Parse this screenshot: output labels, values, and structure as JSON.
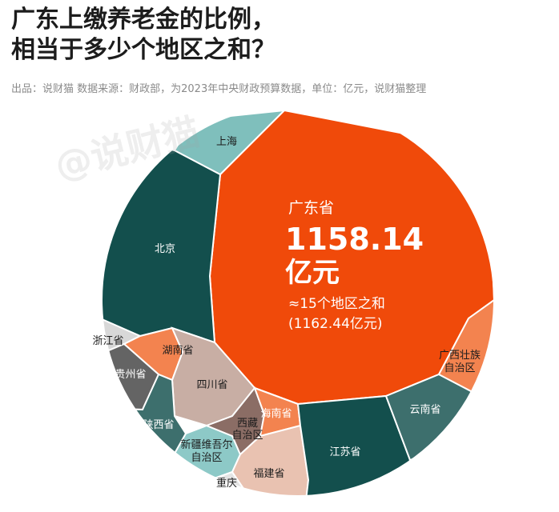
{
  "title_line1": "广东上缴养老金的比例，",
  "title_line2": "相当于多少个地区之和？",
  "source": "出品：说财猫   数据来源：财政部，为2023年中央财政预算数据，单位：亿元，说财猫整理",
  "watermark": "@说财猫",
  "chart_data": {
    "type": "voronoi-treemap",
    "unit": "亿元",
    "highlight": {
      "name": "广东省",
      "value": 1158.14,
      "value_label": "1158.14",
      "unit_label": "亿元",
      "note": "≈15个地区之和",
      "note_value": "(1162.44亿元)",
      "compare_sum": 1162.44
    },
    "regions": [
      {
        "name": "广东省",
        "color": "#f04a0a"
      },
      {
        "name": "北京",
        "color": "#134f4d"
      },
      {
        "name": "上海",
        "color": "#7fbfbc"
      },
      {
        "name": "浙江省",
        "color": "#d8d8d8"
      },
      {
        "name": "湖南省",
        "color": "#f3834f"
      },
      {
        "name": "贵州省",
        "color": "#646464"
      },
      {
        "name": "四川省",
        "color": "#c8aea4"
      },
      {
        "name": "陕西省",
        "color": "#3d6f6d"
      },
      {
        "name": "新疆维吾尔自治区",
        "color": "#8dc9c7"
      },
      {
        "name": "西藏自治区",
        "color": "#8b6d65"
      },
      {
        "name": "海南省",
        "color": "#f3834f"
      },
      {
        "name": "重庆",
        "color": "#e4e4e4"
      },
      {
        "name": "福建省",
        "color": "#e9c2b1"
      },
      {
        "name": "江苏省",
        "color": "#134f4d"
      },
      {
        "name": "云南省",
        "color": "#3d6f6d"
      },
      {
        "name": "广西壮族自治区",
        "color": "#f3834f"
      }
    ]
  }
}
